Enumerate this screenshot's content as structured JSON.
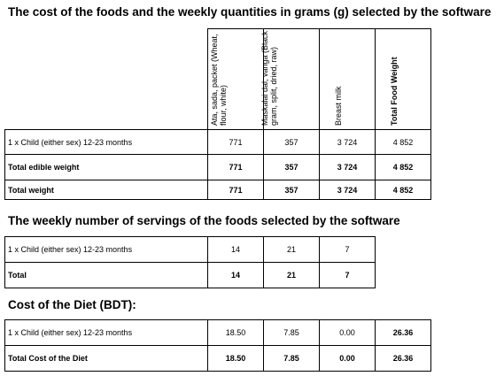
{
  "section1": {
    "title": "The cost of the foods and the weekly quantities in grams (g) selected by the software",
    "columns": [
      "Ata, sada, packet (Wheat, flour, white)",
      "Maskalai dal, vanga (Black gram, split, dried, raw)",
      "Breast milk",
      "Total Food Weight"
    ],
    "rows": [
      {
        "label": "1 x Child (either sex) 12-23 months",
        "values": [
          "771",
          "357",
          "3 724",
          "4 852"
        ]
      },
      {
        "label": "Total edible weight",
        "values": [
          "771",
          "357",
          "3 724",
          "4 852"
        ]
      },
      {
        "label": "Total weight",
        "values": [
          "771",
          "357",
          "3 724",
          "4 852"
        ]
      }
    ]
  },
  "section2": {
    "title": "The weekly number of servings of the foods selected by the software",
    "rows": [
      {
        "label": "1 x Child (either sex) 12-23 months",
        "values": [
          "14",
          "21",
          "7"
        ]
      },
      {
        "label": "Total",
        "values": [
          "14",
          "21",
          "7"
        ]
      }
    ]
  },
  "section3": {
    "title": "Cost of the Diet (BDT):",
    "rows": [
      {
        "label": "1 x Child (either sex) 12-23 months",
        "values": [
          "18.50",
          "7.85",
          "0.00",
          "26.36"
        ]
      },
      {
        "label": "Total Cost of the Diet",
        "values": [
          "18.50",
          "7.85",
          "0.00",
          "26.36"
        ]
      }
    ]
  }
}
